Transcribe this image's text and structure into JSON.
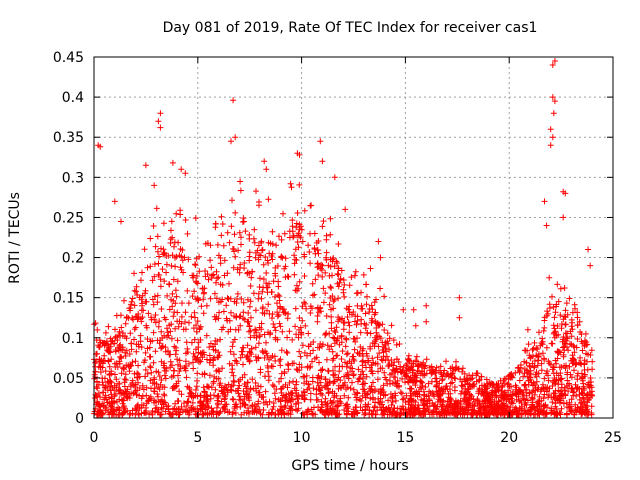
{
  "chart_data": {
    "type": "scatter",
    "title": "Day 081 of 2019, Rate Of TEC Index for receiver cas1",
    "xlabel": "GPS time / hours",
    "ylabel": "ROTI / TECUs",
    "xlim": [
      0,
      25
    ],
    "ylim": [
      0,
      0.45
    ],
    "xticks": [
      0,
      5,
      10,
      15,
      20,
      25
    ],
    "xtick_labels": [
      "0",
      "5",
      "10",
      "15",
      "20",
      "25"
    ],
    "yticks": [
      0,
      0.05,
      0.1,
      0.15,
      0.2,
      0.25,
      0.3,
      0.35,
      0.4,
      0.45
    ],
    "ytick_labels": [
      "0",
      "0.05",
      "0.1",
      "0.15",
      "0.2",
      "0.25",
      "0.3",
      "0.35",
      "0.4",
      "0.45"
    ],
    "grid": true,
    "marker": "+",
    "color": "#ff0000",
    "envelope": {
      "hours": [
        0,
        0.5,
        1,
        1.5,
        2,
        2.5,
        3,
        3.5,
        4,
        4.5,
        5,
        5.5,
        6,
        6.5,
        7,
        7.5,
        8,
        8.5,
        9,
        9.5,
        10,
        10.5,
        11,
        11.5,
        12,
        12.5,
        13,
        13.5,
        14,
        14.5,
        15,
        15.5,
        16,
        16.5,
        17,
        17.5,
        18,
        18.5,
        19,
        19.5,
        20,
        20.5,
        21,
        21.5,
        22,
        22.5,
        23,
        23.5,
        24
      ],
      "typical_max_roti": [
        0.1,
        0.09,
        0.1,
        0.12,
        0.16,
        0.2,
        0.22,
        0.2,
        0.22,
        0.2,
        0.2,
        0.18,
        0.2,
        0.22,
        0.26,
        0.24,
        0.22,
        0.22,
        0.22,
        0.24,
        0.24,
        0.22,
        0.2,
        0.2,
        0.18,
        0.16,
        0.15,
        0.15,
        0.12,
        0.08,
        0.07,
        0.07,
        0.06,
        0.06,
        0.06,
        0.06,
        0.05,
        0.05,
        0.04,
        0.04,
        0.05,
        0.06,
        0.08,
        0.1,
        0.15,
        0.14,
        0.12,
        0.1,
        0.08
      ]
    },
    "notable_points": [
      {
        "x": 0.2,
        "y": 0.34
      },
      {
        "x": 0.3,
        "y": 0.338
      },
      {
        "x": 3.2,
        "y": 0.38
      },
      {
        "x": 3.1,
        "y": 0.37
      },
      {
        "x": 3.2,
        "y": 0.362
      },
      {
        "x": 4.2,
        "y": 0.31
      },
      {
        "x": 4.4,
        "y": 0.305
      },
      {
        "x": 6.7,
        "y": 0.396
      },
      {
        "x": 6.6,
        "y": 0.345
      },
      {
        "x": 6.8,
        "y": 0.35
      },
      {
        "x": 8.2,
        "y": 0.32
      },
      {
        "x": 8.3,
        "y": 0.31
      },
      {
        "x": 9.8,
        "y": 0.33
      },
      {
        "x": 9.9,
        "y": 0.328
      },
      {
        "x": 10.9,
        "y": 0.345
      },
      {
        "x": 11.0,
        "y": 0.32
      },
      {
        "x": 2.5,
        "y": 0.315
      },
      {
        "x": 3.8,
        "y": 0.318
      },
      {
        "x": 11.6,
        "y": 0.3
      },
      {
        "x": 12.1,
        "y": 0.26
      },
      {
        "x": 13.7,
        "y": 0.22
      },
      {
        "x": 13.8,
        "y": 0.2
      },
      {
        "x": 17.6,
        "y": 0.15
      },
      {
        "x": 17.6,
        "y": 0.125
      },
      {
        "x": 14.9,
        "y": 0.135
      },
      {
        "x": 15.4,
        "y": 0.135
      },
      {
        "x": 15.5,
        "y": 0.115
      },
      {
        "x": 16.0,
        "y": 0.12
      },
      {
        "x": 16.0,
        "y": 0.14
      },
      {
        "x": 20.9,
        "y": 0.11
      },
      {
        "x": 22.1,
        "y": 0.44
      },
      {
        "x": 22.2,
        "y": 0.445
      },
      {
        "x": 22.1,
        "y": 0.4
      },
      {
        "x": 22.2,
        "y": 0.395
      },
      {
        "x": 22.15,
        "y": 0.38
      },
      {
        "x": 22.0,
        "y": 0.36
      },
      {
        "x": 22.1,
        "y": 0.35
      },
      {
        "x": 22.0,
        "y": 0.34
      },
      {
        "x": 22.6,
        "y": 0.282
      },
      {
        "x": 22.7,
        "y": 0.28
      },
      {
        "x": 21.7,
        "y": 0.27
      },
      {
        "x": 21.8,
        "y": 0.24
      },
      {
        "x": 22.6,
        "y": 0.25
      },
      {
        "x": 23.8,
        "y": 0.21
      },
      {
        "x": 23.9,
        "y": 0.19
      },
      {
        "x": 1.3,
        "y": 0.245
      },
      {
        "x": 1.0,
        "y": 0.27
      },
      {
        "x": 2.9,
        "y": 0.29
      }
    ]
  }
}
